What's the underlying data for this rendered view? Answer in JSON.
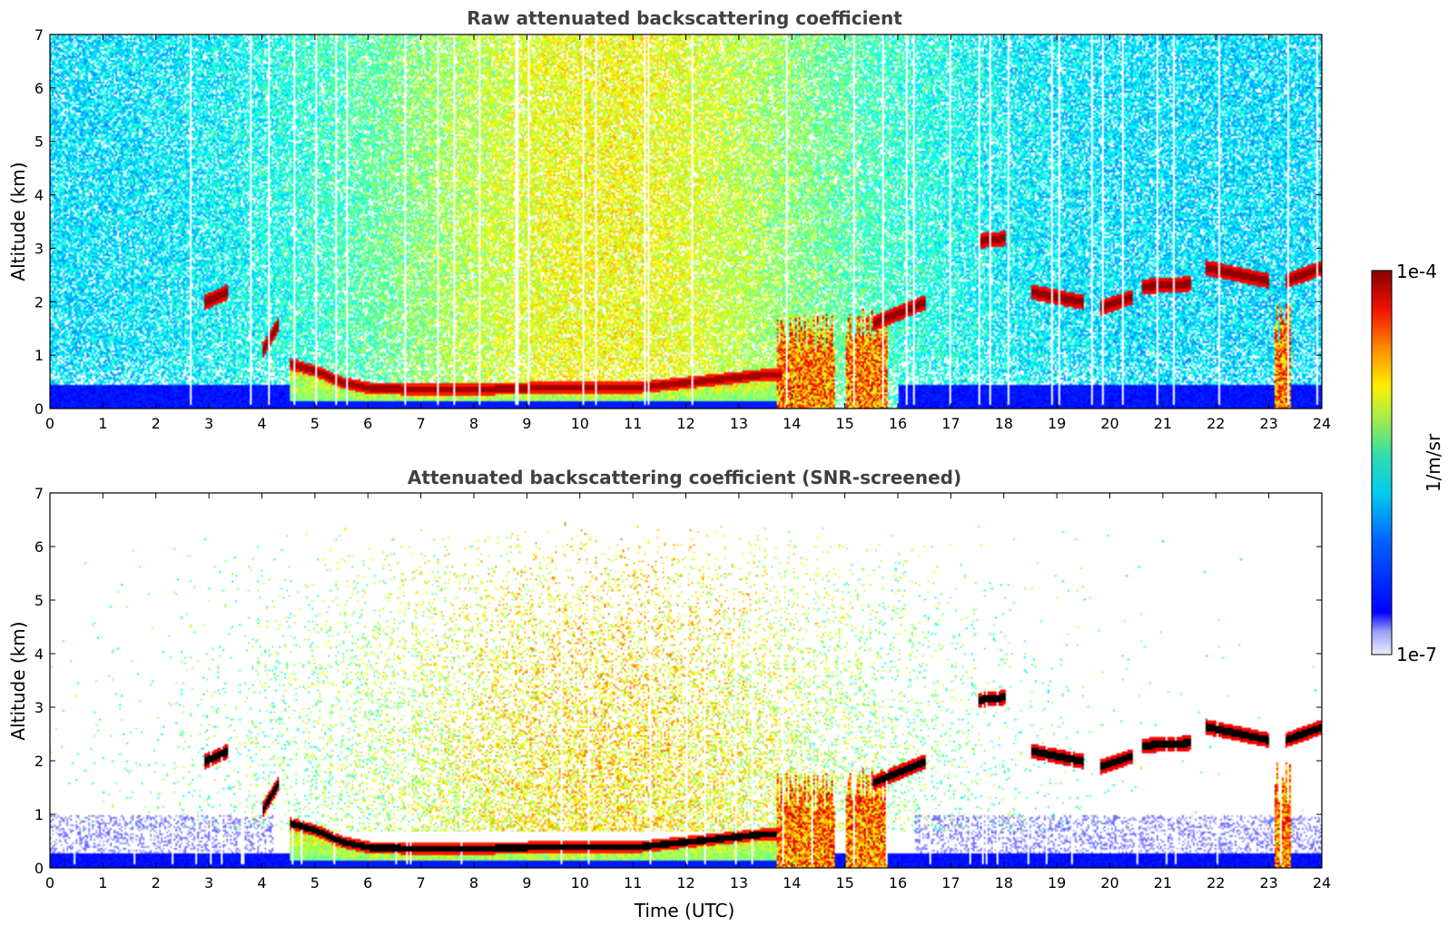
{
  "chart_data": [
    {
      "type": "heatmap",
      "title": "Raw attenuated backscattering coefficient",
      "xlabel": "",
      "ylabel": "Altitude (km)",
      "xlim": [
        0,
        24
      ],
      "ylim": [
        0,
        7
      ],
      "x_ticks": [
        "0",
        "1",
        "2",
        "3",
        "4",
        "5",
        "6",
        "7",
        "8",
        "9",
        "10",
        "11",
        "12",
        "13",
        "14",
        "15",
        "16",
        "17",
        "18",
        "19",
        "20",
        "21",
        "22",
        "23",
        "24"
      ],
      "y_ticks": [
        "0",
        "1",
        "2",
        "3",
        "4",
        "5",
        "6",
        "7"
      ],
      "x_unit": "hours UTC",
      "y_unit": "km",
      "screened": false,
      "features": {
        "boundary_layer_top_km": [
          [
            4.5,
            0.85
          ],
          [
            5.0,
            0.72
          ],
          [
            5.5,
            0.5
          ],
          [
            6.0,
            0.4
          ],
          [
            7.0,
            0.37
          ],
          [
            8.0,
            0.37
          ],
          [
            9.0,
            0.4
          ],
          [
            10.0,
            0.4
          ],
          [
            11.0,
            0.4
          ],
          [
            12.0,
            0.5
          ],
          [
            13.0,
            0.6
          ],
          [
            13.5,
            0.65
          ]
        ],
        "cloud_layers": [
          {
            "t_start": 2.9,
            "t_end": 3.35,
            "alt_start_km": 2.0,
            "alt_end_km": 2.2
          },
          {
            "t_start": 4.0,
            "t_end": 4.3,
            "alt_start_km": 1.1,
            "alt_end_km": 1.6
          },
          {
            "t_start": 15.5,
            "t_end": 16.5,
            "alt_start_km": 1.6,
            "alt_end_km": 2.0
          },
          {
            "t_start": 17.5,
            "t_end": 18.0,
            "alt_start_km": 3.15,
            "alt_end_km": 3.2
          },
          {
            "t_start": 18.5,
            "t_end": 19.5,
            "alt_start_km": 2.2,
            "alt_end_km": 2.0
          },
          {
            "t_start": 19.8,
            "t_end": 20.4,
            "alt_start_km": 1.9,
            "alt_end_km": 2.1
          },
          {
            "t_start": 20.6,
            "t_end": 21.5,
            "alt_start_km": 2.3,
            "alt_end_km": 2.35
          },
          {
            "t_start": 21.8,
            "t_end": 23.0,
            "alt_start_km": 2.65,
            "alt_end_km": 2.4
          },
          {
            "t_start": 23.3,
            "t_end": 24.0,
            "alt_start_km": 2.4,
            "alt_end_km": 2.65
          }
        ],
        "convective_plumes": [
          {
            "t_start": 13.7,
            "t_end": 14.8,
            "top_km": 1.8
          },
          {
            "t_start": 15.0,
            "t_end": 15.8,
            "top_km": 1.9
          },
          {
            "t_start": 23.1,
            "t_end": 23.4,
            "top_km": 2.0
          }
        ]
      }
    },
    {
      "type": "heatmap",
      "title": "Attenuated backscattering coefficient (SNR-screened)",
      "xlabel": "Time (UTC)",
      "ylabel": "Altitude (km)",
      "xlim": [
        0,
        24
      ],
      "ylim": [
        0,
        7
      ],
      "x_ticks": [
        "0",
        "1",
        "2",
        "3",
        "4",
        "5",
        "6",
        "7",
        "8",
        "9",
        "10",
        "11",
        "12",
        "13",
        "14",
        "15",
        "16",
        "17",
        "18",
        "19",
        "20",
        "21",
        "22",
        "23",
        "24"
      ],
      "y_ticks": [
        "0",
        "1",
        "2",
        "3",
        "4",
        "5",
        "6",
        "7"
      ],
      "x_unit": "hours UTC",
      "y_unit": "km",
      "screened": true
    }
  ],
  "colorbar": {
    "label": "1/m/sr",
    "max_label": "1e-4",
    "min_label": "1e-7",
    "scale": "log",
    "range": [
      1e-07,
      0.0001
    ],
    "colormap": "jet"
  },
  "colors": {
    "title": "#404040",
    "axes": "#000000",
    "background": "#ffffff"
  }
}
